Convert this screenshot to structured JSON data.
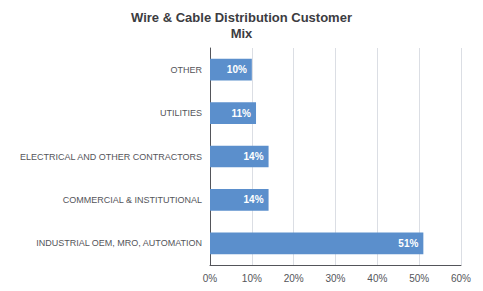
{
  "chart_data": {
    "type": "bar",
    "orientation": "horizontal",
    "title": "Wire & Cable Distribution Customer\nMix",
    "categories": [
      "INDUSTRIAL OEM, MRO, AUTOMATION",
      "COMMERCIAL & INSTITUTIONAL",
      "ELECTRICAL AND OTHER CONTRACTORS",
      "UTILITIES",
      "OTHER"
    ],
    "values": [
      0.51,
      0.14,
      0.14,
      0.11,
      0.1
    ],
    "value_labels": [
      "51%",
      "14%",
      "14%",
      "11%",
      "10%"
    ],
    "data_labels": true,
    "color": "#5B8FCC",
    "xlim": [
      0,
      0.6
    ],
    "xticks": [
      {
        "value": 0.0,
        "label": "0%"
      },
      {
        "value": 0.1,
        "label": "10%"
      },
      {
        "value": 0.2,
        "label": "20%"
      },
      {
        "value": 0.3,
        "label": "30%"
      },
      {
        "value": 0.4,
        "label": "40%"
      },
      {
        "value": 0.5,
        "label": "50%"
      },
      {
        "value": 0.6,
        "label": "60%"
      }
    ],
    "grid": true
  }
}
